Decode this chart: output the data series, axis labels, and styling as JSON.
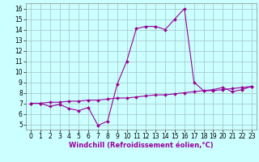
{
  "xlabel": "Windchill (Refroidissement éolien,°C)",
  "x": [
    0,
    1,
    2,
    3,
    4,
    5,
    6,
    7,
    8,
    9,
    10,
    11,
    12,
    13,
    14,
    15,
    16,
    17,
    18,
    19,
    20,
    21,
    22,
    23
  ],
  "y_curve": [
    7.0,
    7.0,
    6.7,
    6.9,
    6.5,
    6.3,
    6.6,
    4.9,
    5.3,
    8.8,
    11.0,
    14.1,
    14.3,
    14.3,
    14.0,
    15.0,
    16.0,
    9.0,
    8.2,
    8.3,
    8.5,
    8.1,
    8.3,
    8.6
  ],
  "y_line": [
    7.0,
    7.0,
    7.1,
    7.1,
    7.2,
    7.2,
    7.3,
    7.3,
    7.4,
    7.5,
    7.5,
    7.6,
    7.7,
    7.8,
    7.8,
    7.9,
    8.0,
    8.1,
    8.2,
    8.2,
    8.3,
    8.4,
    8.5,
    8.6
  ],
  "line_color": "#990099",
  "bg_color": "#ccffff",
  "grid_color": "#aacccc",
  "ylim": [
    4.5,
    16.5
  ],
  "yticks": [
    5,
    6,
    7,
    8,
    9,
    10,
    11,
    12,
    13,
    14,
    15,
    16
  ],
  "xticks": [
    0,
    1,
    2,
    3,
    4,
    5,
    6,
    7,
    8,
    9,
    10,
    11,
    12,
    13,
    14,
    15,
    16,
    17,
    18,
    19,
    20,
    21,
    22,
    23
  ],
  "xlabel_fontsize": 6.0,
  "tick_fontsize": 5.5
}
